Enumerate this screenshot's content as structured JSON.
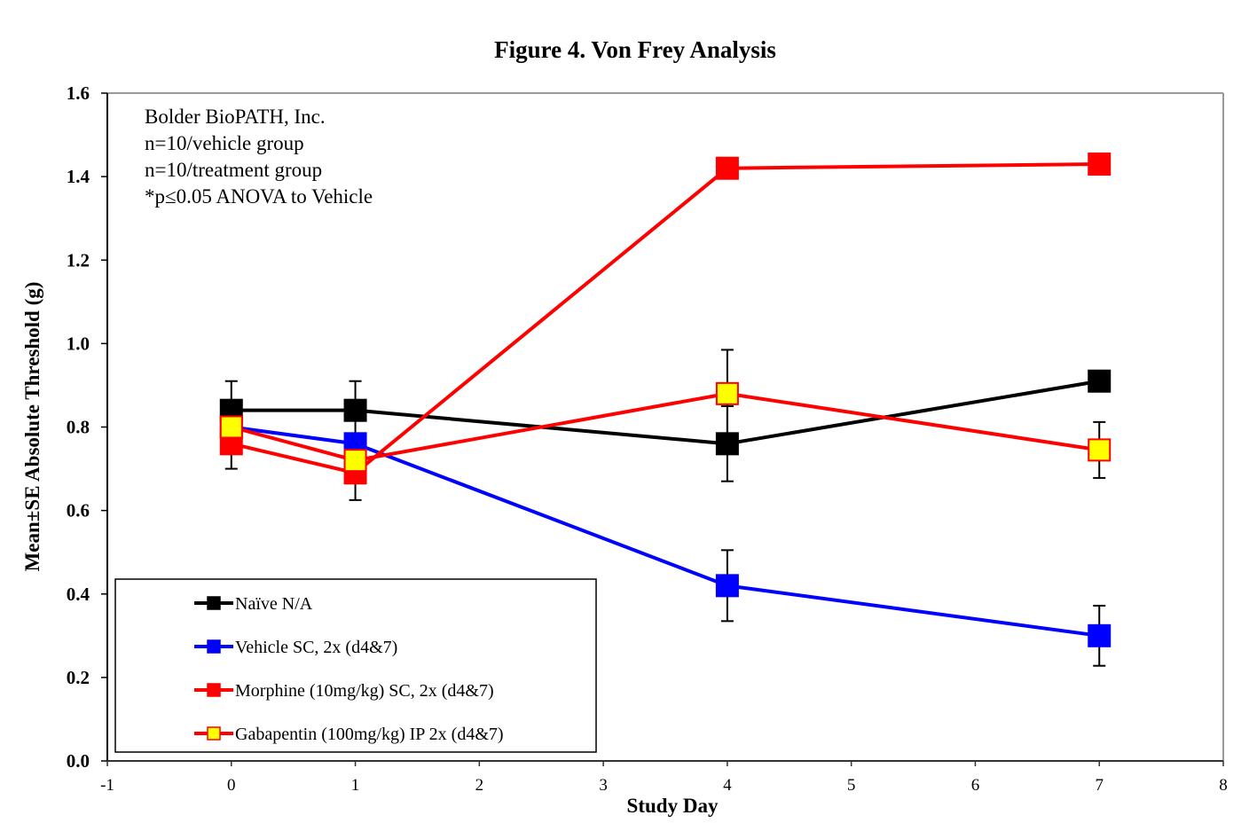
{
  "chart_data": {
    "type": "line",
    "title": "Figure 4. Von Frey Analysis",
    "xlabel": "Study Day",
    "ylabel": "Mean±SE Absolute Threshold (g)",
    "xlim": [
      -1,
      8
    ],
    "ylim": [
      0.0,
      1.6
    ],
    "xticks": [
      "-1",
      "0",
      "1",
      "2",
      "3",
      "4",
      "5",
      "6",
      "7",
      "8"
    ],
    "yticks": [
      "0.0",
      "0.2",
      "0.4",
      "0.6",
      "0.8",
      "1.0",
      "1.2",
      "1.4",
      "1.6"
    ],
    "grid": false,
    "legend_position": "bottom-left",
    "annotation_lines": [
      "Bolder BioPATH, Inc.",
      "n=10/vehicle group",
      "n=10/treatment group",
      "*p≤0.05 ANOVA to Vehicle"
    ],
    "x": [
      0,
      1,
      4,
      7
    ],
    "series": [
      {
        "name": "Naïve N/A",
        "line_color": "#000000",
        "marker_fill": "#000000",
        "marker_edge": "#000000",
        "values": [
          0.84,
          0.84,
          0.76,
          0.91
        ],
        "errors": [
          0.07,
          0.07,
          0.09,
          0.0
        ]
      },
      {
        "name": "Vehicle SC, 2x (d4&7)",
        "line_color": "#0000ff",
        "marker_fill": "#0000ff",
        "marker_edge": "#0000ff",
        "values": [
          0.8,
          0.76,
          0.42,
          0.3
        ],
        "errors": [
          0.0,
          0.0,
          0.085,
          0.072
        ]
      },
      {
        "name": "Morphine (10mg/kg) SC, 2x (d4&7)",
        "line_color": "#ff0000",
        "marker_fill": "#ff0000",
        "marker_edge": "#ff0000",
        "values": [
          0.76,
          0.69,
          1.42,
          1.43
        ],
        "errors": [
          0.06,
          0.065,
          0.0,
          0.0
        ]
      },
      {
        "name": "Gabapentin (100mg/kg) IP 2x (d4&7)",
        "line_color": "#ff0000",
        "marker_fill": "#ffff00",
        "marker_edge": "#ff0000",
        "values": [
          0.8,
          0.72,
          0.88,
          0.745
        ],
        "errors": [
          0.0,
          0.0,
          0.105,
          0.067
        ]
      }
    ]
  }
}
